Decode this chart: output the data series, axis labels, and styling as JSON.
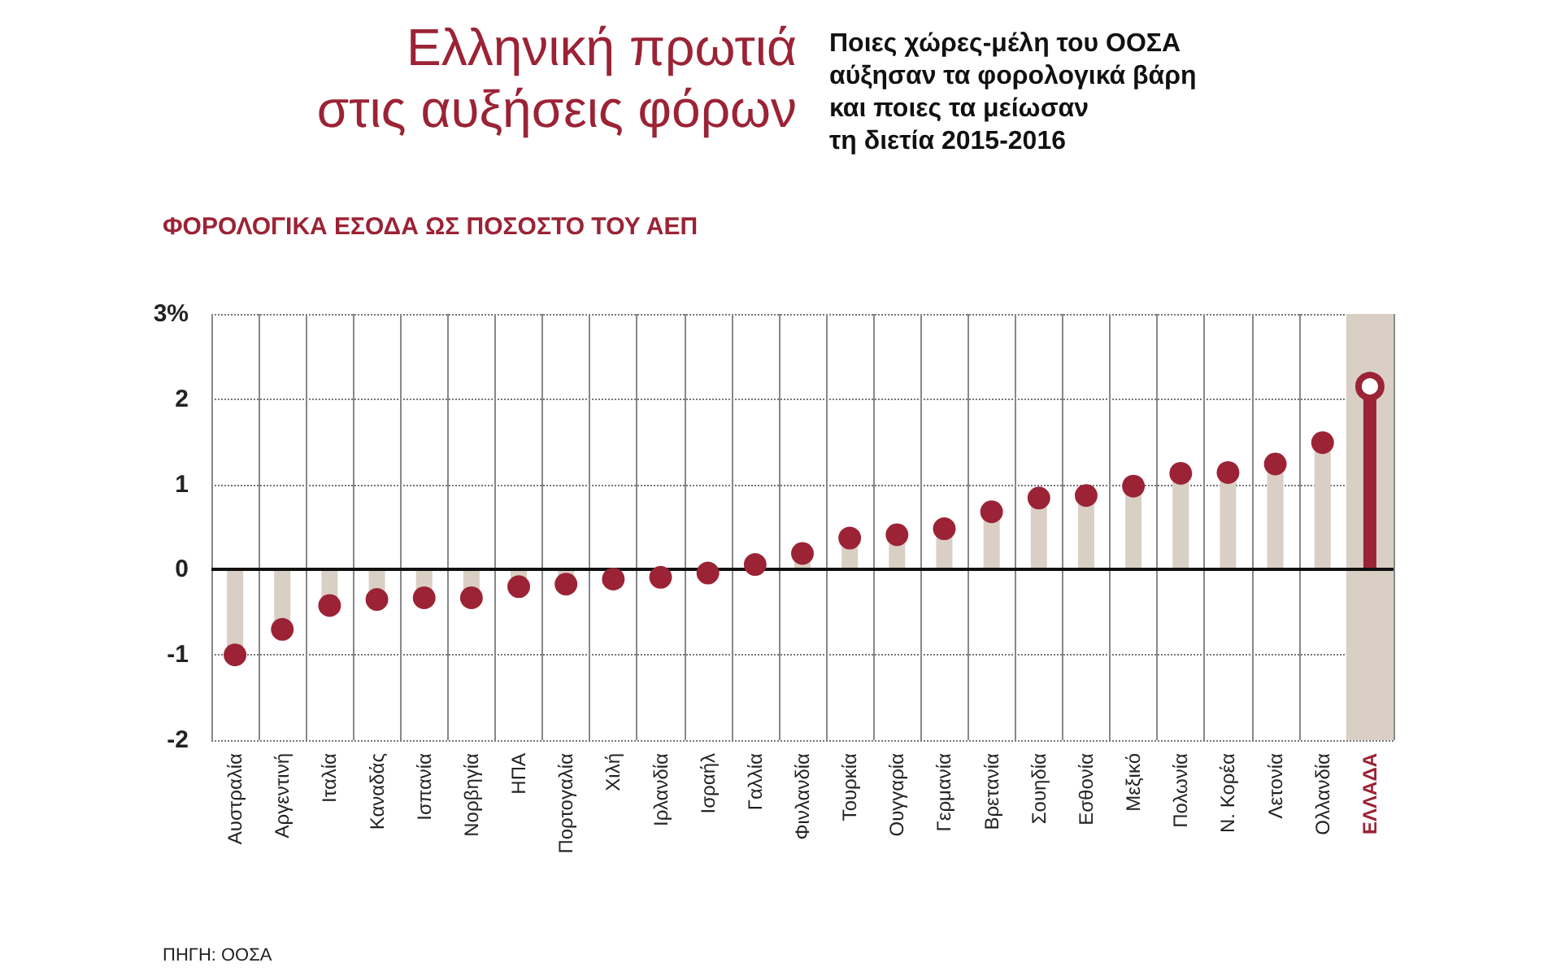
{
  "chart_data": {
    "type": "lollipop",
    "title": "Ελληνική πρωτιά\nστις αυξήσεις φόρων",
    "subtitle": "Ποιες χώρες-μέλη του ΟΟΣΑ\nαύξησαν τα φορολογικά βάρη\nκαι ποιες τα μείωσαν\nτη διετία 2015-2016",
    "ylabel": "ΦΟΡΟΛΟΓΙΚΑ ΕΣΟΔΑ ΩΣ ΠΟΣΟΣΤΟ ΤΟΥ ΑΕΠ",
    "annotations": [
      "ΠΗΓΗ: ΟΟΣΑ"
    ],
    "categories": [
      "Αυστραλία",
      "Αργεντινή",
      "Ιταλία",
      "Καναδάς",
      "Ισπανία",
      "Νορβηγία",
      "ΗΠΑ",
      "Πορτογαλία",
      "Χιλή",
      "Ιρλανδία",
      "Ισραήλ",
      "Γαλλία",
      "Φινλανδία",
      "Τουρκία",
      "Ουγγαρία",
      "Γερμανία",
      "Βρετανία",
      "Σουηδία",
      "Εσθονία",
      "Μεξικό",
      "Πολωνία",
      "Ν. Κορέα",
      "Λετονία",
      "Ολλανδία",
      "ΕΛΛΑΔΑ"
    ],
    "values": [
      -1.0,
      -0.7,
      -0.42,
      -0.35,
      -0.33,
      -0.33,
      -0.2,
      -0.17,
      -0.11,
      -0.09,
      -0.04,
      0.06,
      0.19,
      0.37,
      0.41,
      0.48,
      0.68,
      0.84,
      0.87,
      0.98,
      1.13,
      1.14,
      1.24,
      1.49,
      2.15
    ],
    "color": "#9b2335",
    "bands": [
      {
        "axis": "x",
        "from": "ΕΛΛΑΔΑ",
        "to": "ΕΛΛΑΔΑ",
        "color": "#d9cfc4"
      }
    ],
    "ref_lines": [
      {
        "axis": "y",
        "value": 0,
        "color": "#111111"
      }
    ],
    "ylim": [
      -2,
      3
    ],
    "yticks": [
      {
        "value": 3,
        "label": "3%"
      },
      2,
      1,
      0,
      -1,
      -2
    ],
    "grid": true,
    "marker": "circle"
  }
}
